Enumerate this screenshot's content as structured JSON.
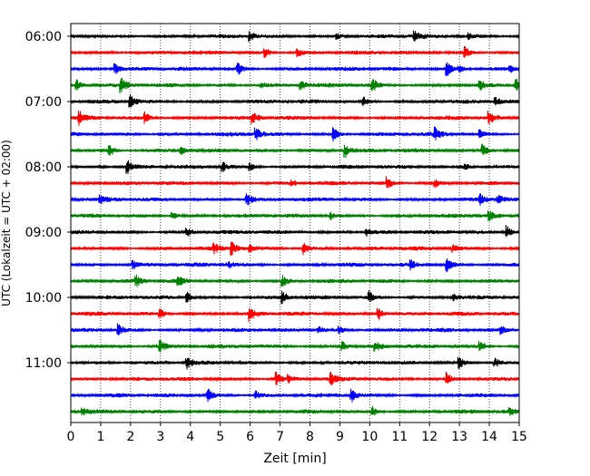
{
  "chart_data": {
    "type": "line",
    "subtype": "helicorder",
    "xlabel": "Zeit  [min]",
    "ylabel": "UTC (Lokalzeit = UTC + 02:00)",
    "xlim": [
      0,
      15
    ],
    "x_ticks": [
      0,
      1,
      2,
      3,
      4,
      5,
      6,
      7,
      8,
      9,
      10,
      11,
      12,
      13,
      14,
      15
    ],
    "y_tick_labels": [
      "06:00",
      "07:00",
      "08:00",
      "09:00",
      "10:00",
      "11:00"
    ],
    "grid": "vertical dotted at each minute",
    "trace_interval_min": 15,
    "colors": [
      "#000000",
      "#ff0000",
      "#0000ff",
      "#008000"
    ],
    "traces": [
      {
        "start": "06:00",
        "events_min": [
          6.0,
          8.9,
          11.5,
          13.3
        ]
      },
      {
        "start": "06:15",
        "events_min": [
          6.5,
          7.6,
          13.2
        ]
      },
      {
        "start": "06:30",
        "events_min": [
          1.5,
          5.6,
          12.6,
          13.0,
          14.7
        ]
      },
      {
        "start": "06:45",
        "events_min": [
          0.2,
          1.7,
          6.4,
          7.7,
          10.1,
          13.7,
          14.9
        ]
      },
      {
        "start": "07:00",
        "events_min": [
          2.0,
          9.8,
          14.2
        ]
      },
      {
        "start": "07:15",
        "events_min": [
          0.3,
          2.5,
          6.1,
          14.0
        ]
      },
      {
        "start": "07:30",
        "events_min": [
          6.2,
          8.8,
          12.2,
          13.7
        ]
      },
      {
        "start": "07:45",
        "events_min": [
          1.3,
          3.7,
          9.2,
          13.8
        ]
      },
      {
        "start": "08:00",
        "events_min": [
          1.9,
          5.1,
          6.0,
          13.2
        ]
      },
      {
        "start": "08:15",
        "events_min": [
          7.4,
          10.6,
          12.2
        ]
      },
      {
        "start": "08:30",
        "events_min": [
          1.0,
          5.9,
          13.7,
          14.3
        ]
      },
      {
        "start": "08:45",
        "events_min": [
          3.4,
          8.7,
          14.0
        ]
      },
      {
        "start": "09:00",
        "events_min": [
          3.9,
          9.9,
          14.6
        ]
      },
      {
        "start": "09:15",
        "events_min": [
          4.8,
          5.4,
          6.0,
          7.8,
          12.8
        ]
      },
      {
        "start": "09:30",
        "events_min": [
          2.1,
          5.3,
          11.4,
          12.6
        ]
      },
      {
        "start": "09:45",
        "events_min": [
          2.2,
          3.6,
          7.1
        ]
      },
      {
        "start": "10:00",
        "events_min": [
          3.9,
          7.1,
          10.0,
          12.8
        ]
      },
      {
        "start": "10:15",
        "events_min": [
          3.0,
          6.0,
          10.3
        ]
      },
      {
        "start": "10:30",
        "events_min": [
          1.6,
          8.3,
          9.0,
          14.4
        ]
      },
      {
        "start": "10:45",
        "events_min": [
          3.0,
          9.1,
          10.2,
          13.7
        ]
      },
      {
        "start": "11:00",
        "events_min": [
          3.9,
          13.0,
          14.2
        ]
      },
      {
        "start": "11:15",
        "events_min": [
          6.9,
          7.3,
          8.7,
          12.6
        ]
      },
      {
        "start": "11:30",
        "events_min": [
          4.6,
          6.2,
          9.4
        ]
      },
      {
        "start": "11:45",
        "events_min": [
          0.4,
          10.1,
          14.7
        ]
      }
    ]
  }
}
